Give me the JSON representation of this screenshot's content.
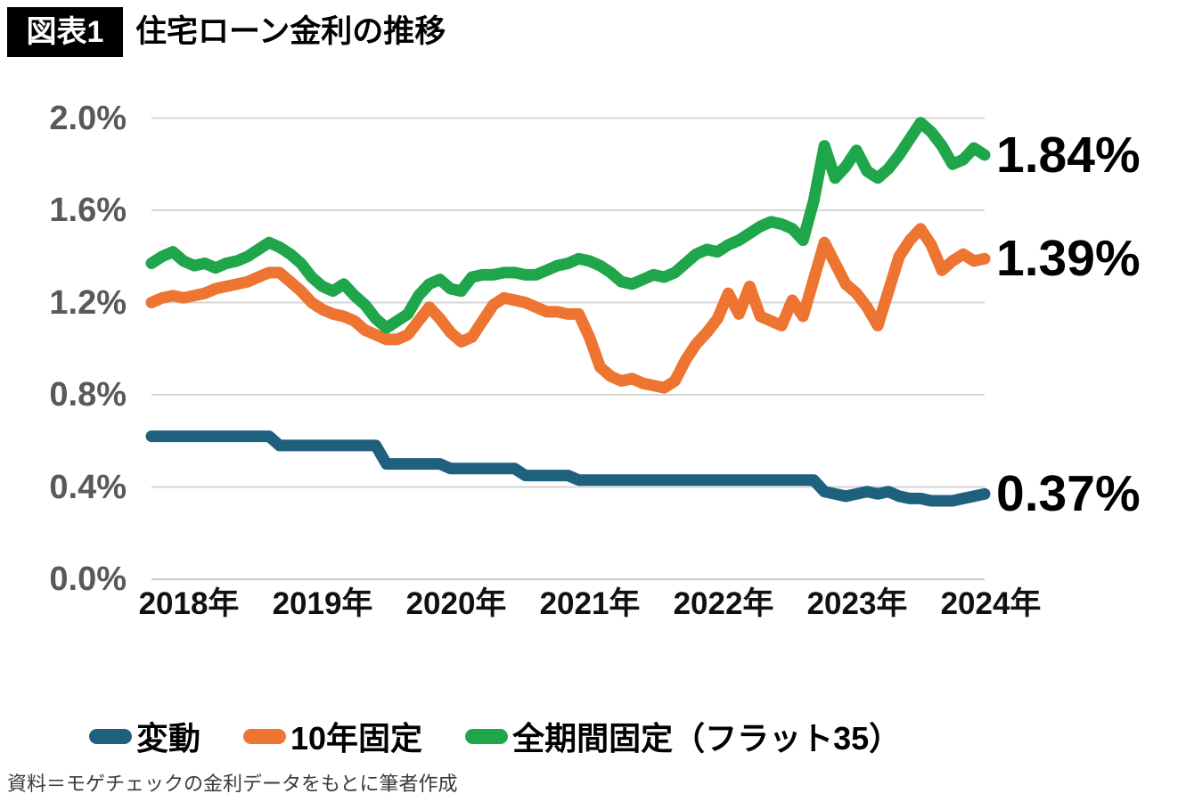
{
  "header": {
    "badge": "図表1",
    "title": "住宅ローン金利の推移"
  },
  "source_note": "資料＝モゲチェックの金利データをもとに筆者作成",
  "chart_data": {
    "type": "line",
    "title": "住宅ローン金利の推移",
    "x_unit": "month",
    "x_range": "2018-01 to 2024-07",
    "xtick_labels": [
      "2018年",
      "2019年",
      "2020年",
      "2021年",
      "2022年",
      "2023年",
      "2024年"
    ],
    "ytick_values": [
      0,
      0.4,
      0.8,
      1.2,
      1.6,
      2.0
    ],
    "ytick_labels": [
      "0.0%",
      "0.4%",
      "0.8%",
      "1.2%",
      "1.6%",
      "2.0%"
    ],
    "ylim": [
      0,
      2.0
    ],
    "grid": "horizontal",
    "legend_position": "bottom",
    "colors": {
      "grid": "#D6D6D6",
      "axis_line": "#C9C9C9",
      "ytick_text": "#595959",
      "xtick_text": "#111111"
    },
    "series": [
      {
        "name": "変動",
        "color": "#1F607F",
        "end_label": "0.37%",
        "values": [
          0.62,
          0.62,
          0.62,
          0.62,
          0.62,
          0.62,
          0.62,
          0.62,
          0.62,
          0.62,
          0.62,
          0.62,
          0.58,
          0.58,
          0.58,
          0.58,
          0.58,
          0.58,
          0.58,
          0.58,
          0.58,
          0.58,
          0.5,
          0.5,
          0.5,
          0.5,
          0.5,
          0.5,
          0.48,
          0.48,
          0.48,
          0.48,
          0.48,
          0.48,
          0.48,
          0.45,
          0.45,
          0.45,
          0.45,
          0.45,
          0.43,
          0.43,
          0.43,
          0.43,
          0.43,
          0.43,
          0.43,
          0.43,
          0.43,
          0.43,
          0.43,
          0.43,
          0.43,
          0.43,
          0.43,
          0.43,
          0.43,
          0.43,
          0.43,
          0.43,
          0.43,
          0.43,
          0.43,
          0.38,
          0.37,
          0.36,
          0.37,
          0.38,
          0.37,
          0.38,
          0.36,
          0.35,
          0.35,
          0.34,
          0.34,
          0.34,
          0.35,
          0.36,
          0.37
        ]
      },
      {
        "name": "10年固定",
        "color": "#ED7431",
        "end_label": "1.39%",
        "values": [
          1.2,
          1.22,
          1.23,
          1.22,
          1.23,
          1.24,
          1.26,
          1.27,
          1.28,
          1.29,
          1.31,
          1.33,
          1.33,
          1.29,
          1.25,
          1.2,
          1.17,
          1.15,
          1.14,
          1.12,
          1.08,
          1.06,
          1.04,
          1.04,
          1.06,
          1.12,
          1.18,
          1.13,
          1.07,
          1.03,
          1.05,
          1.12,
          1.19,
          1.22,
          1.21,
          1.2,
          1.18,
          1.16,
          1.16,
          1.15,
          1.15,
          1.05,
          0.92,
          0.88,
          0.86,
          0.87,
          0.85,
          0.84,
          0.83,
          0.86,
          0.95,
          1.02,
          1.07,
          1.13,
          1.24,
          1.15,
          1.27,
          1.14,
          1.12,
          1.1,
          1.21,
          1.14,
          1.3,
          1.46,
          1.37,
          1.28,
          1.24,
          1.18,
          1.1,
          1.25,
          1.4,
          1.47,
          1.52,
          1.45,
          1.34,
          1.38,
          1.41,
          1.38,
          1.39
        ]
      },
      {
        "name": "全期間固定（フラット35）",
        "color": "#1FA64A",
        "end_label": "1.84%",
        "values": [
          1.37,
          1.4,
          1.42,
          1.38,
          1.36,
          1.37,
          1.35,
          1.37,
          1.38,
          1.4,
          1.43,
          1.46,
          1.44,
          1.41,
          1.37,
          1.31,
          1.27,
          1.25,
          1.28,
          1.23,
          1.19,
          1.13,
          1.09,
          1.12,
          1.15,
          1.23,
          1.28,
          1.3,
          1.26,
          1.25,
          1.31,
          1.32,
          1.32,
          1.33,
          1.33,
          1.32,
          1.32,
          1.34,
          1.36,
          1.37,
          1.39,
          1.38,
          1.36,
          1.33,
          1.29,
          1.28,
          1.3,
          1.32,
          1.31,
          1.33,
          1.37,
          1.41,
          1.43,
          1.42,
          1.45,
          1.47,
          1.5,
          1.53,
          1.55,
          1.54,
          1.52,
          1.47,
          1.64,
          1.88,
          1.74,
          1.79,
          1.86,
          1.77,
          1.74,
          1.78,
          1.84,
          1.91,
          1.98,
          1.94,
          1.88,
          1.8,
          1.82,
          1.87,
          1.84
        ]
      }
    ]
  }
}
